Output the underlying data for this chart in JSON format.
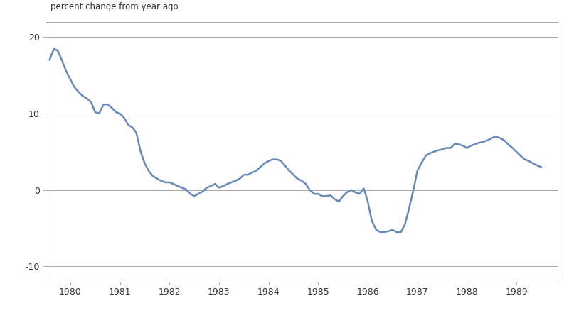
{
  "title": "percent change from year ago",
  "line_color": "#6688bb",
  "background_color": "#ffffff",
  "xlim": [
    1979.5,
    1989.83
  ],
  "ylim": [
    -12,
    22
  ],
  "yticks": [
    -10,
    0,
    10,
    20
  ],
  "xticks": [
    1980,
    1981,
    1982,
    1983,
    1984,
    1985,
    1986,
    1987,
    1988,
    1989
  ],
  "x": [
    1979.58,
    1979.67,
    1979.75,
    1979.83,
    1979.92,
    1980.0,
    1980.08,
    1980.17,
    1980.25,
    1980.33,
    1980.42,
    1980.5,
    1980.58,
    1980.67,
    1980.75,
    1980.83,
    1980.92,
    1981.0,
    1981.08,
    1981.17,
    1981.25,
    1981.33,
    1981.42,
    1981.5,
    1981.58,
    1981.67,
    1981.75,
    1981.83,
    1981.92,
    1982.0,
    1982.08,
    1982.17,
    1982.25,
    1982.33,
    1982.42,
    1982.5,
    1982.58,
    1982.67,
    1982.75,
    1982.83,
    1982.92,
    1983.0,
    1983.08,
    1983.17,
    1983.25,
    1983.33,
    1983.42,
    1983.5,
    1983.58,
    1983.67,
    1983.75,
    1983.83,
    1983.92,
    1984.0,
    1984.08,
    1984.17,
    1984.25,
    1984.33,
    1984.42,
    1984.5,
    1984.58,
    1984.67,
    1984.75,
    1984.83,
    1984.92,
    1985.0,
    1985.08,
    1985.17,
    1985.25,
    1985.33,
    1985.42,
    1985.5,
    1985.58,
    1985.67,
    1985.75,
    1985.83,
    1985.92,
    1986.0,
    1986.08,
    1986.17,
    1986.25,
    1986.33,
    1986.42,
    1986.5,
    1986.58,
    1986.67,
    1986.75,
    1986.83,
    1986.92,
    1987.0,
    1987.08,
    1987.17,
    1987.25,
    1987.33,
    1987.42,
    1987.5,
    1987.58,
    1987.67,
    1987.75,
    1987.83,
    1987.92,
    1988.0,
    1988.08,
    1988.17,
    1988.25,
    1988.33,
    1988.42,
    1988.5,
    1988.58,
    1988.67,
    1988.75,
    1988.83,
    1988.92,
    1989.0,
    1989.08,
    1989.17,
    1989.25,
    1989.33,
    1989.42,
    1989.5
  ],
  "y": [
    17.0,
    18.5,
    18.2,
    17.0,
    15.5,
    14.5,
    13.5,
    12.8,
    12.3,
    12.0,
    11.5,
    10.2,
    10.0,
    11.2,
    11.2,
    10.8,
    10.2,
    10.0,
    9.5,
    8.5,
    8.2,
    7.5,
    5.0,
    3.5,
    2.5,
    1.8,
    1.5,
    1.2,
    1.0,
    1.0,
    0.8,
    0.5,
    0.3,
    0.1,
    -0.5,
    -0.8,
    -0.5,
    -0.2,
    0.3,
    0.5,
    0.8,
    0.3,
    0.5,
    0.8,
    1.0,
    1.2,
    1.5,
    2.0,
    2.0,
    2.3,
    2.5,
    3.0,
    3.5,
    3.8,
    4.0,
    4.0,
    3.8,
    3.2,
    2.5,
    2.0,
    1.5,
    1.2,
    0.8,
    0.0,
    -0.5,
    -0.5,
    -0.8,
    -0.8,
    -0.7,
    -1.2,
    -1.5,
    -0.8,
    -0.3,
    0.0,
    -0.3,
    -0.5,
    0.2,
    -1.5,
    -4.0,
    -5.2,
    -5.5,
    -5.5,
    -5.4,
    -5.2,
    -5.5,
    -5.5,
    -4.5,
    -2.5,
    0.0,
    2.5,
    3.5,
    4.5,
    4.8,
    5.0,
    5.2,
    5.3,
    5.5,
    5.5,
    6.0,
    6.0,
    5.8,
    5.5,
    5.8,
    6.0,
    6.2,
    6.3,
    6.5,
    6.8,
    7.0,
    6.8,
    6.5,
    6.0,
    5.5,
    5.0,
    4.5,
    4.0,
    3.8,
    3.5,
    3.2,
    3.0
  ]
}
